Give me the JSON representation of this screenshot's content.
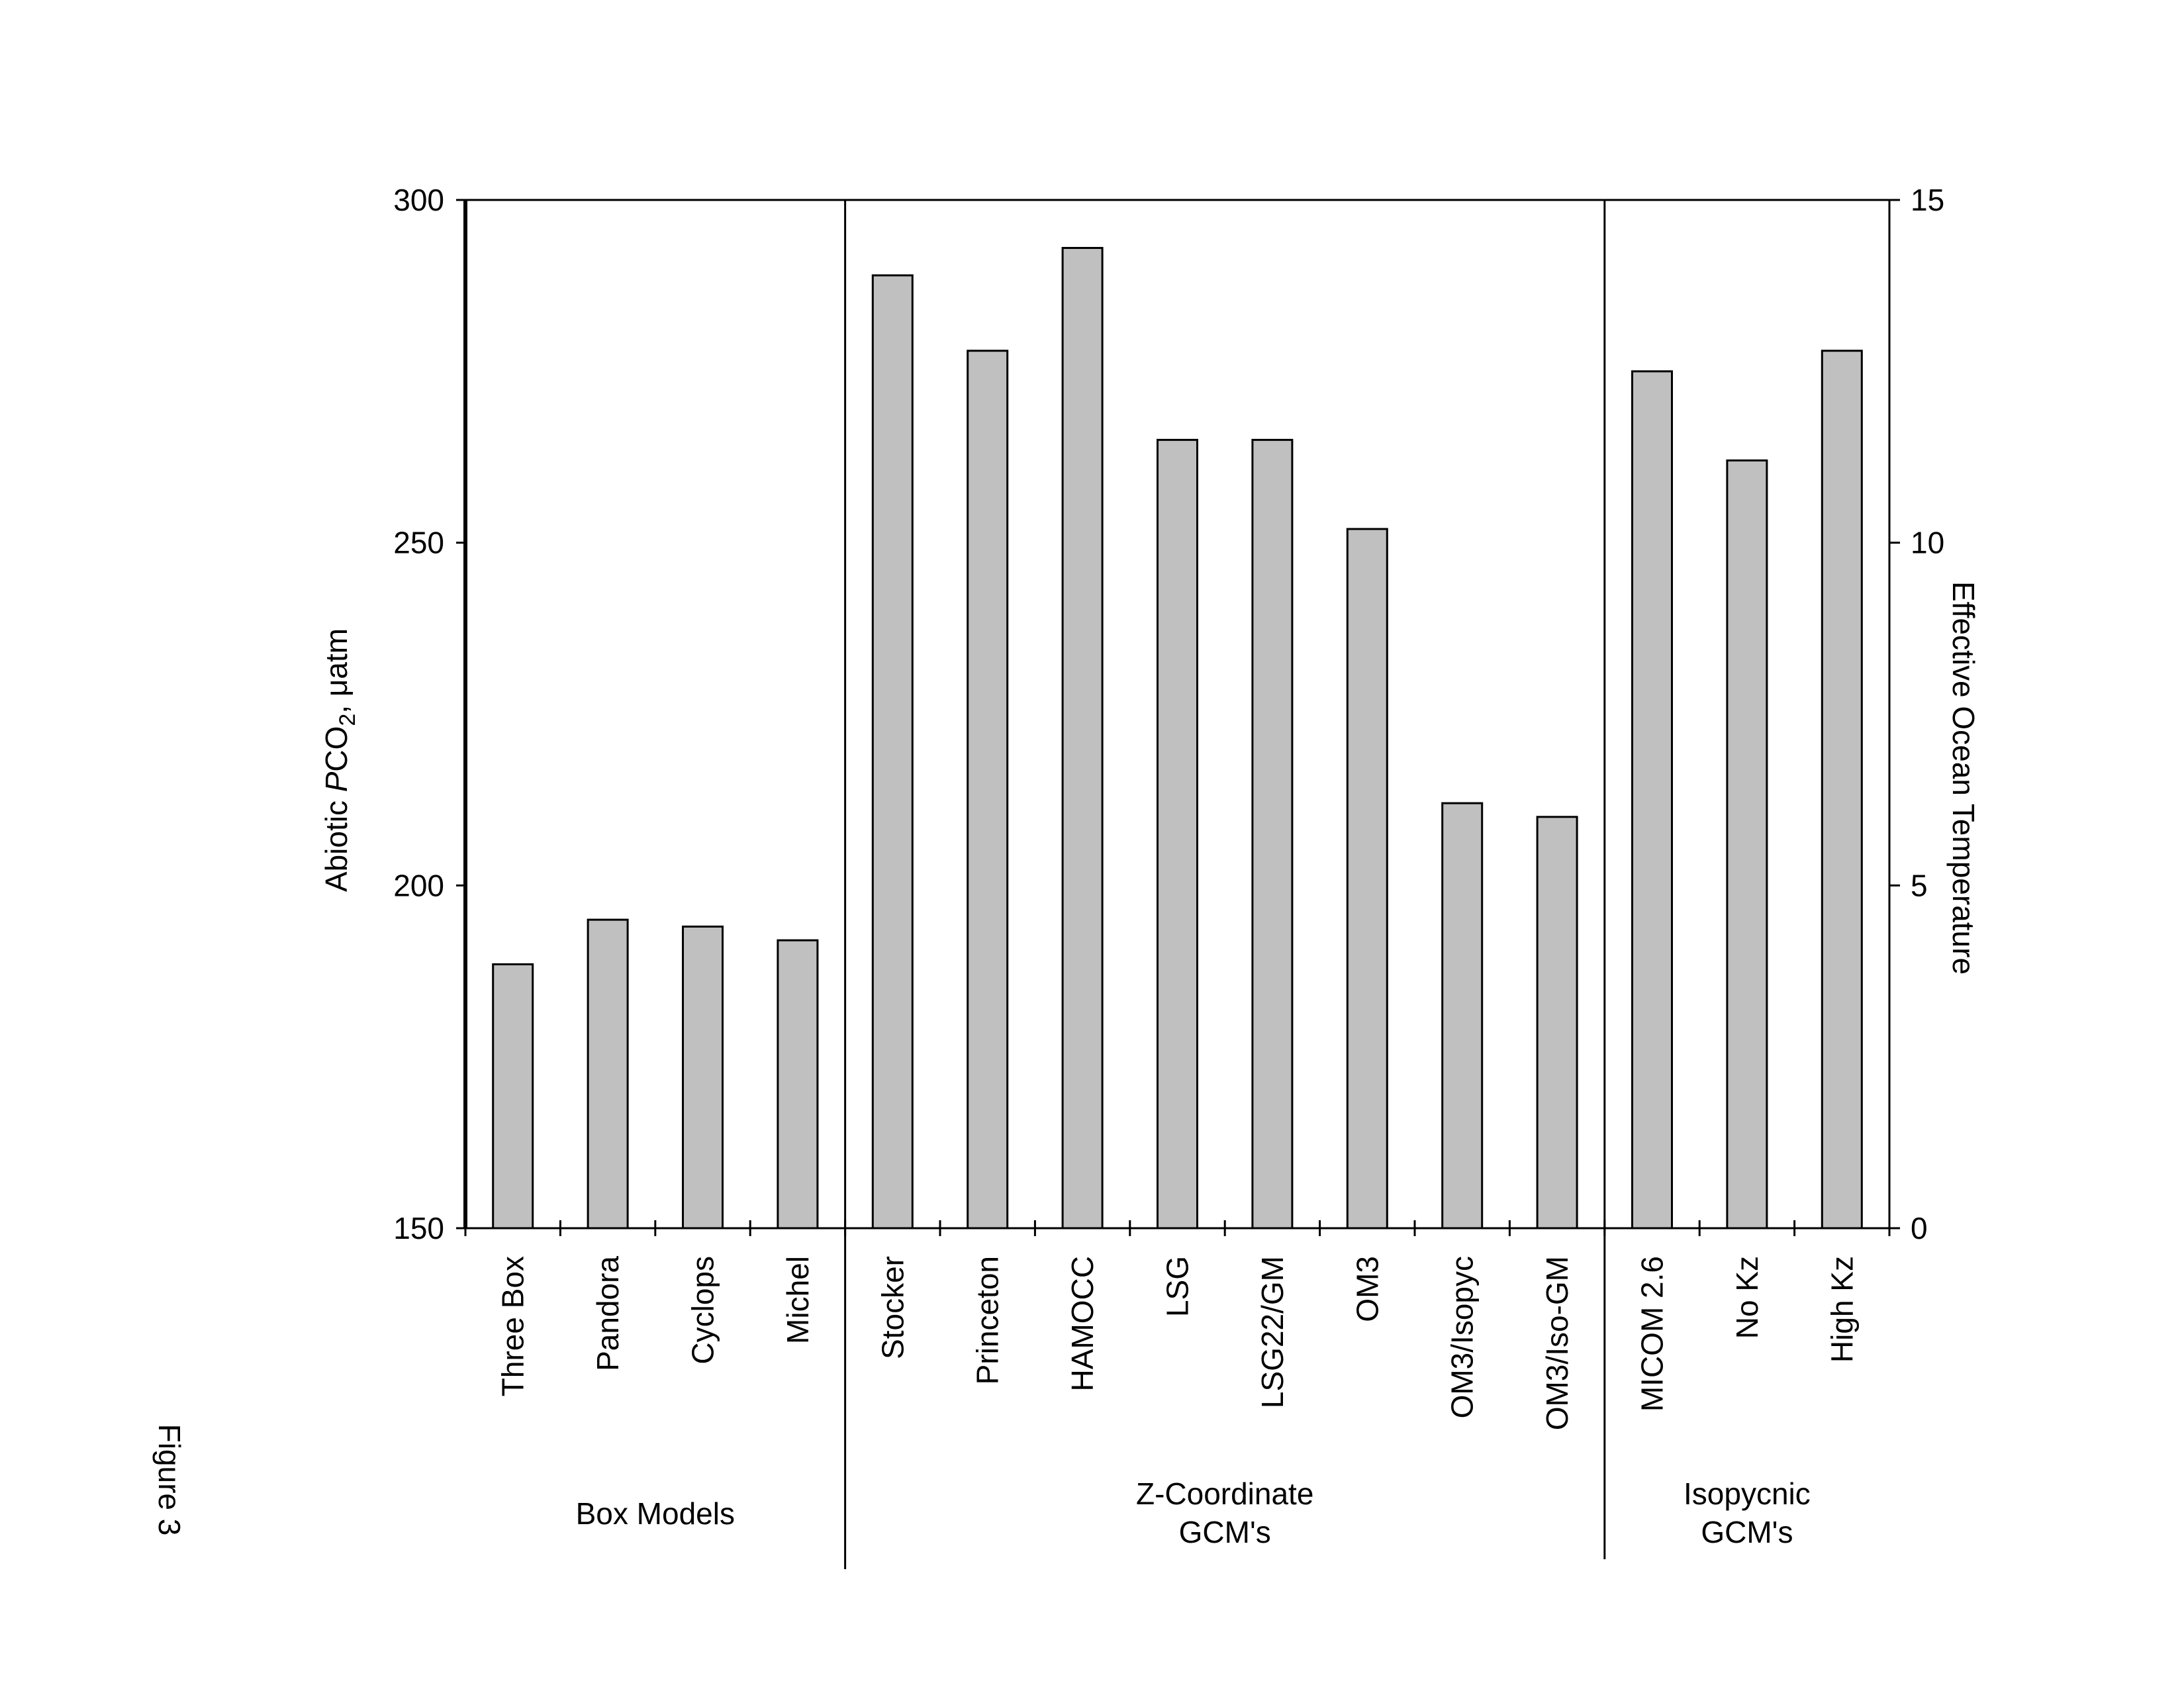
{
  "figure_caption": "Figure 3",
  "chart_data": {
    "type": "bar",
    "title": "",
    "ylabel": {
      "prefix": "Abiotic ",
      "italic": "P",
      "main": "CO",
      "sub": "2",
      "suffix": ", μatm"
    },
    "y2label": "Effective Ocean Temperature",
    "ylim": [
      150,
      300
    ],
    "yticks": [
      150,
      200,
      250,
      300
    ],
    "y2lim": [
      0,
      15
    ],
    "y2ticks": [
      0,
      5,
      10,
      15
    ],
    "grid": false,
    "bar_color": "#c0c0c0",
    "categories": [
      "Three Box",
      "Pandora",
      "Cyclops",
      "Michel",
      "Stocker",
      "Princeton",
      "HAMOCC",
      "LSG",
      "LSG22/GM",
      "OM3",
      "OM3/Isopyc",
      "OM3/Iso-GM",
      "MICOM 2.6",
      "No Kz",
      "High Kz"
    ],
    "values": [
      188.5,
      195,
      194,
      192,
      289,
      278,
      293,
      265,
      265,
      252,
      212,
      210,
      275,
      262,
      278
    ],
    "groups": [
      {
        "lines": [
          "Box Models"
        ],
        "count": 4
      },
      {
        "lines": [
          "Z-Coordinate",
          "GCM's"
        ],
        "count": 8
      },
      {
        "lines": [
          "Isopycnic",
          "GCM's"
        ],
        "count": 3
      }
    ]
  }
}
